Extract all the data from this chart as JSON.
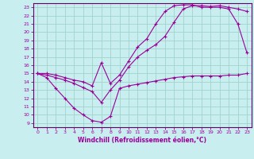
{
  "xlabel": "Windchill (Refroidissement éolien,°C)",
  "bg_color": "#c8eef0",
  "grid_color": "#a0d4cc",
  "line_color": "#990099",
  "spine_color": "#660066",
  "xlim": [
    -0.5,
    23.5
  ],
  "ylim": [
    8.5,
    23.5
  ],
  "xticks": [
    0,
    1,
    2,
    3,
    4,
    5,
    6,
    7,
    8,
    9,
    10,
    11,
    12,
    13,
    14,
    15,
    16,
    17,
    18,
    19,
    20,
    21,
    22,
    23
  ],
  "yticks": [
    9,
    10,
    11,
    12,
    13,
    14,
    15,
    16,
    17,
    18,
    19,
    20,
    21,
    22,
    23
  ],
  "curve1_x": [
    0,
    1,
    2,
    3,
    4,
    5,
    6,
    7,
    8,
    9,
    10,
    11,
    12,
    13,
    14,
    15,
    16,
    17,
    18,
    19,
    20,
    21,
    22,
    23
  ],
  "curve1_y": [
    15.0,
    14.5,
    13.2,
    12.0,
    10.8,
    10.0,
    9.3,
    9.1,
    9.8,
    13.2,
    13.5,
    13.7,
    13.9,
    14.1,
    14.3,
    14.5,
    14.6,
    14.7,
    14.7,
    14.7,
    14.7,
    14.8,
    14.8,
    15.0
  ],
  "curve2_x": [
    0,
    1,
    2,
    3,
    4,
    5,
    6,
    7,
    8,
    9,
    10,
    11,
    12,
    13,
    14,
    15,
    16,
    17,
    18,
    19,
    20,
    21,
    22,
    23
  ],
  "curve2_y": [
    15.0,
    14.8,
    14.5,
    14.2,
    13.8,
    13.3,
    12.8,
    11.5,
    13.0,
    14.2,
    15.8,
    17.0,
    17.8,
    18.5,
    19.5,
    21.2,
    22.8,
    23.2,
    23.2,
    23.1,
    23.2,
    23.0,
    22.8,
    22.5
  ],
  "curve3_x": [
    0,
    1,
    2,
    3,
    4,
    5,
    6,
    7,
    8,
    9,
    10,
    11,
    12,
    13,
    14,
    15,
    16,
    17,
    18,
    19,
    20,
    21,
    22,
    23
  ],
  "curve3_y": [
    15.0,
    15.0,
    14.8,
    14.5,
    14.2,
    14.0,
    13.5,
    16.3,
    13.8,
    14.8,
    16.5,
    18.2,
    19.2,
    21.0,
    22.5,
    23.2,
    23.3,
    23.3,
    23.0,
    23.0,
    23.0,
    22.8,
    21.0,
    17.5
  ]
}
